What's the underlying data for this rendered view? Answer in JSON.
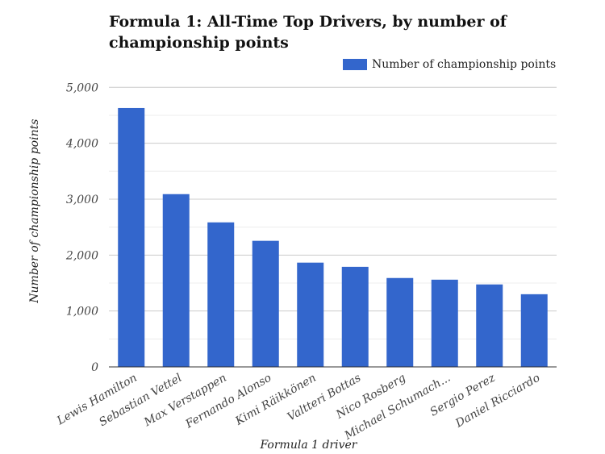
{
  "chart_data": {
    "type": "bar",
    "title": "Formula 1: All-Time Top Drivers, by number of championship points",
    "xlabel": "Formula 1 driver",
    "ylabel": "Number of championship points",
    "categories": [
      "Lewis Hamilton",
      "Sebastian Vettel",
      "Max Verstappen",
      "Fernando Alonso",
      "Kimi Räikkönen",
      "Valtteri Bottas",
      "Nico Rosberg",
      "Michael Schumach...",
      "Sergio Perez",
      "Daniel Ricciardo"
    ],
    "series": [
      {
        "name": "Number of championship points",
        "values": [
          4630,
          3090,
          2585,
          2255,
          1865,
          1790,
          1590,
          1560,
          1475,
          1300
        ],
        "color": "#3366cc"
      }
    ],
    "ylim": [
      0,
      5000
    ],
    "yticks": [
      "0",
      "1,000",
      "2,000",
      "3,000",
      "4,000",
      "5,000"
    ],
    "grid": true,
    "legend": "top-right"
  }
}
